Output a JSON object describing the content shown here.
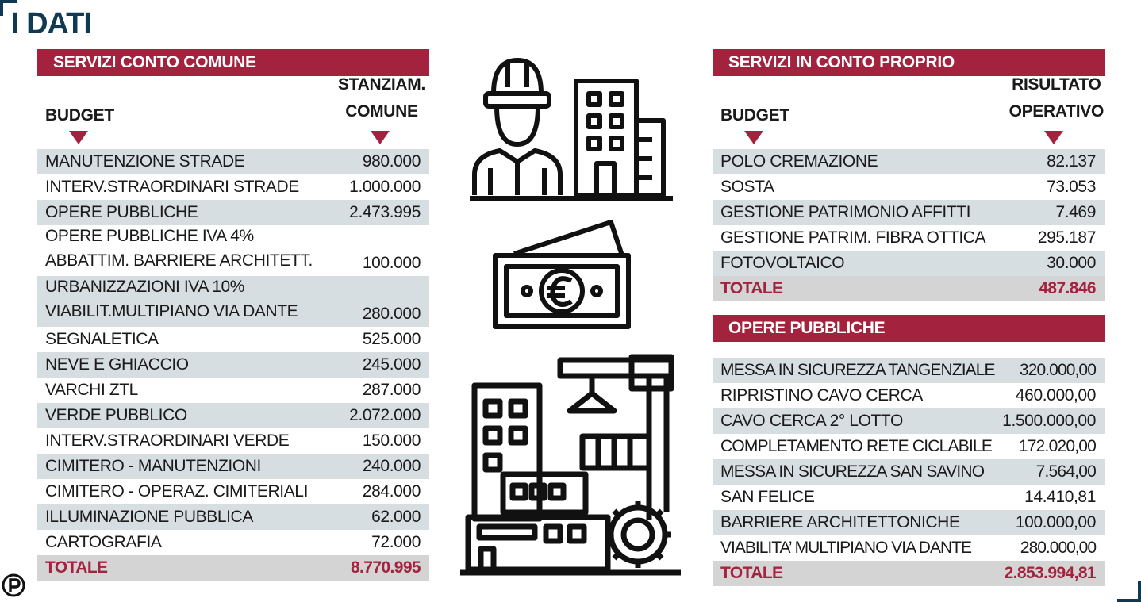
{
  "title": "I DATI",
  "left_table": {
    "section_title": "SERVIZI CONTO COMUNE",
    "col_left": "BUDGET",
    "col_right_lines": [
      "STANZIAM.",
      "COMUNE"
    ],
    "rows": [
      {
        "label": "MANUTENZIONE STRADE",
        "value": "980.000"
      },
      {
        "label": "INTERV.STRAORDINARI STRADE",
        "value": "1.000.000"
      },
      {
        "label": "OPERE PUBBLICHE",
        "value": "2.473.995"
      },
      {
        "label": "OPERE PUBBLICHE IVA 4%",
        "label2": "ABBATTIM. BARRIERE ARCHITETT.",
        "value": "100.000"
      },
      {
        "label": "URBANIZZAZIONI IVA 10%",
        "label2": "VIABILIT.MULTIPIANO VIA DANTE",
        "value": "280.000"
      },
      {
        "label": "SEGNALETICA",
        "value": "525.000"
      },
      {
        "label": "NEVE E GHIACCIO",
        "value": "245.000"
      },
      {
        "label": "VARCHI ZTL",
        "value": "287.000"
      },
      {
        "label": "VERDE PUBBLICO",
        "value": "2.072.000"
      },
      {
        "label": "INTERV.STRAORDINARI VERDE",
        "value": "150.000"
      },
      {
        "label": "CIMITERO - MANUTENZIONI",
        "value": "240.000"
      },
      {
        "label": "CIMITERO - OPERAZ. CIMITERIALI",
        "value": "284.000"
      },
      {
        "label": "ILLUMINAZIONE PUBBLICA",
        "value": "62.000"
      },
      {
        "label": "CARTOGRAFIA",
        "value": "72.000"
      }
    ],
    "total": {
      "label": "TOTALE",
      "value": "8.770.995"
    }
  },
  "right_table": {
    "section_title": "SERVIZI IN CONTO PROPRIO",
    "col_left": "BUDGET",
    "col_right_lines": [
      "RISULTATO",
      "OPERATIVO"
    ],
    "rows": [
      {
        "label": "POLO CREMAZIONE",
        "value": "82.137"
      },
      {
        "label": "SOSTA",
        "value": "73.053"
      },
      {
        "label": "GESTIONE PATRIMONIO AFFITTI",
        "value": "7.469"
      },
      {
        "label": "GESTIONE PATRIM. FIBRA OTTICA",
        "value": "295.187"
      },
      {
        "label": "FOTOVOLTAICO",
        "value": "30.000"
      }
    ],
    "total": {
      "label": "TOTALE",
      "value": "487.846"
    }
  },
  "opere_table": {
    "section_title": "OPERE PUBBLICHE",
    "rows": [
      {
        "label": "MESSA IN SICUREZZA TANGENZIALE",
        "value": "320.000,00"
      },
      {
        "label": "RIPRISTINO CAVO CERCA",
        "value": "460.000,00"
      },
      {
        "label": "CAVO CERCA 2° LOTTO",
        "value": "1.500.000,00"
      },
      {
        "label": "COMPLETAMENTO RETE CICLABILE",
        "value": "172.020,00"
      },
      {
        "label": "MESSA IN SICUREZZA SAN SAVINO",
        "value": "7.564,00"
      },
      {
        "label": "SAN FELICE",
        "value": "14.410,81"
      },
      {
        "label": "BARRIERE ARCHITETTONICHE",
        "value": "100.000,00"
      },
      {
        "label": "VIABILITA’ MULTIPIANO VIA DANTE",
        "value": "280.000,00"
      }
    ],
    "total": {
      "label": "TOTALE",
      "value": "2.853.994,81"
    }
  },
  "icons": [
    "worker-building-icon",
    "euro-banknote-icon",
    "construction-gear-icon",
    "publisher-logo-icon"
  ],
  "colors": {
    "accent": "#a3233f",
    "title": "#0f3a52",
    "row_shade": "#d6dee2",
    "total_bg": "#d4d4d4"
  }
}
